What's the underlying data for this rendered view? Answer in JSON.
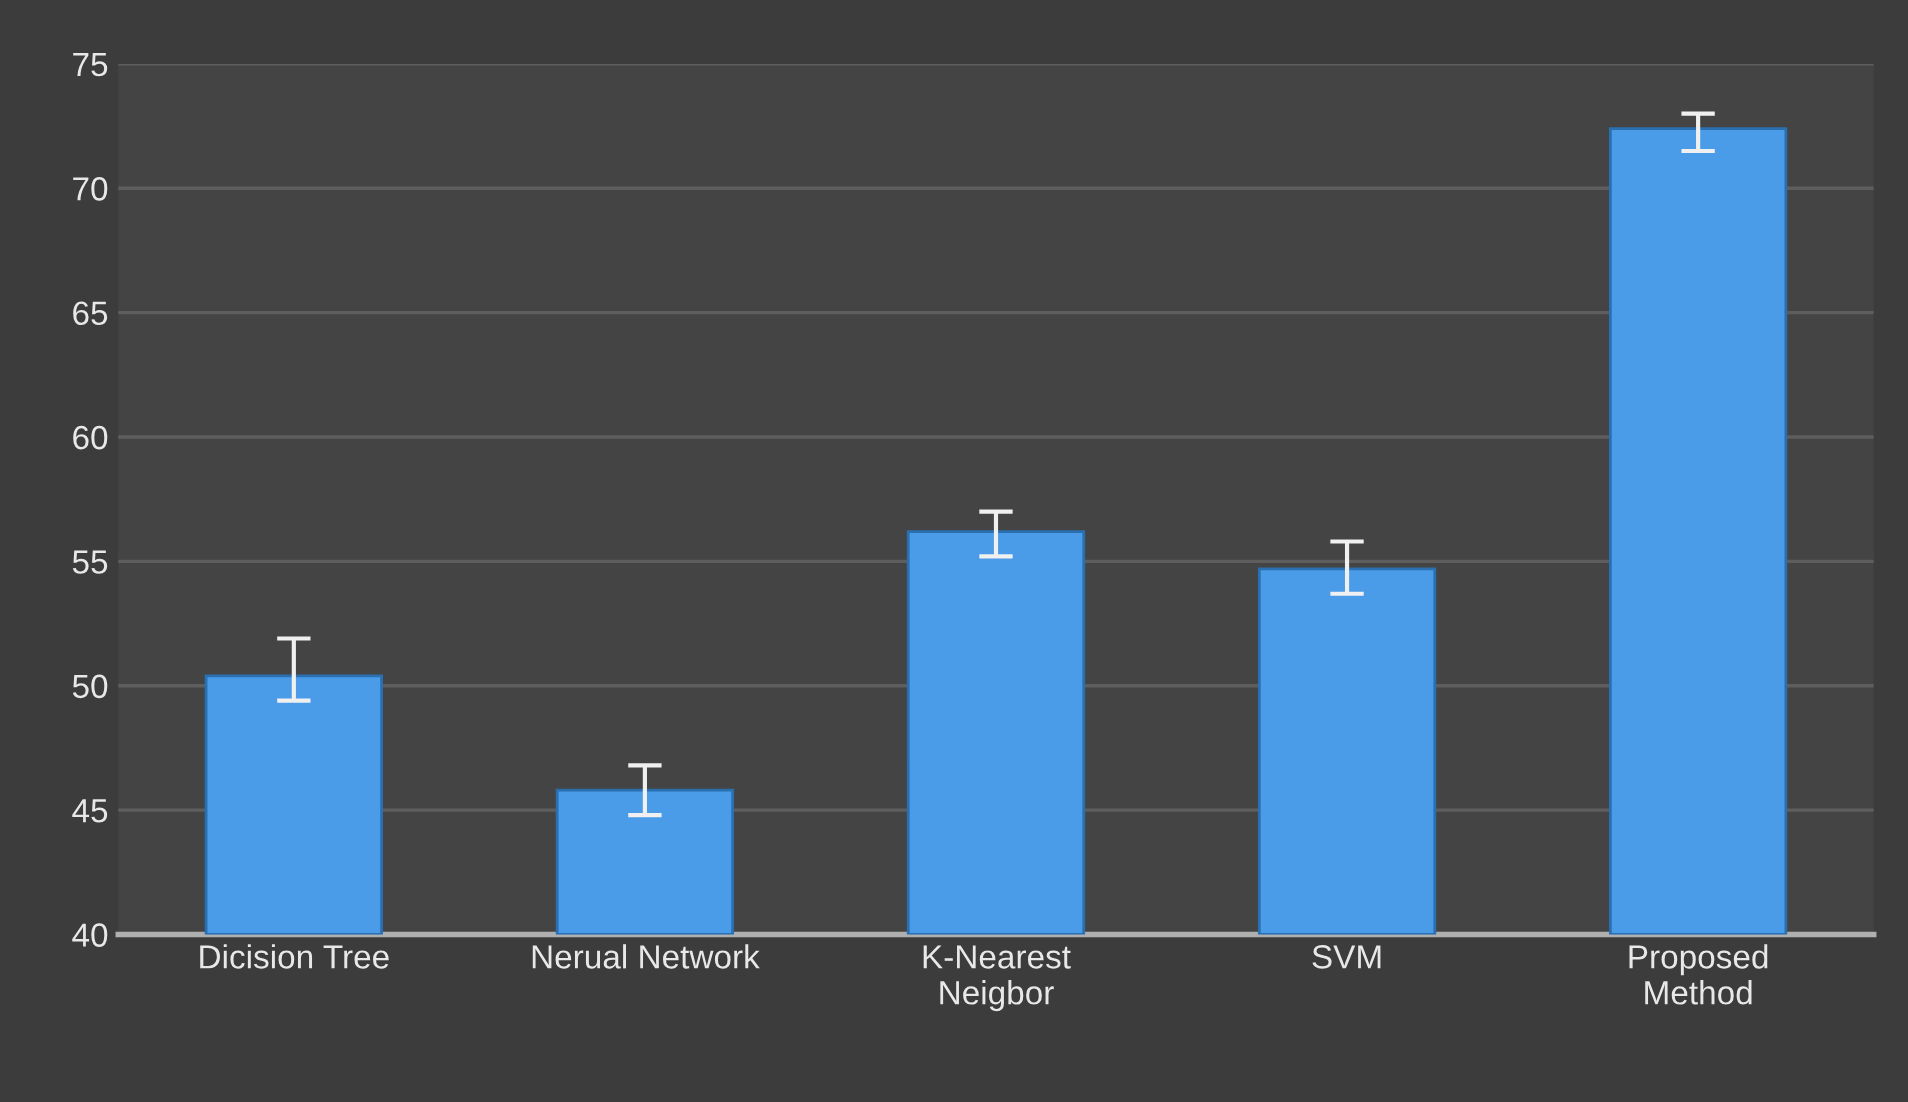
{
  "chart_data": {
    "type": "bar",
    "categories": [
      "Dicision Tree",
      "Nerual Network",
      "K-Nearest\nNeigbor",
      "SVM",
      "Proposed\nMethod"
    ],
    "values": [
      50.4,
      45.8,
      56.2,
      54.7,
      72.4
    ],
    "errors": [
      [
        49.4,
        51.9
      ],
      [
        44.8,
        46.8
      ],
      [
        55.2,
        57.0
      ],
      [
        53.7,
        55.8
      ],
      [
        71.5,
        73.0
      ]
    ],
    "color": "#4a9be8",
    "ylim": [
      40,
      75
    ],
    "yticks": [
      40,
      45,
      50,
      55,
      60,
      65,
      70,
      75
    ],
    "grid": "y",
    "legend": false
  }
}
